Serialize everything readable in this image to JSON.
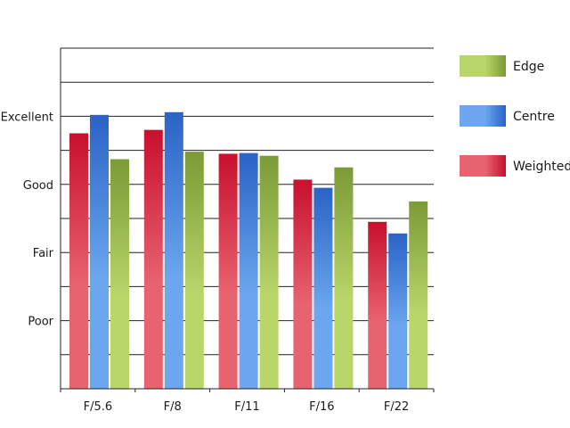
{
  "chart_data": {
    "type": "bar",
    "categories": [
      "F/5.6",
      "F/8",
      "F/11",
      "F/16",
      "F/22"
    ],
    "y_tick_labels": [
      {
        "value": 1,
        "label": "Poor"
      },
      {
        "value": 2,
        "label": "Fair"
      },
      {
        "value": 3,
        "label": "Good"
      },
      {
        "value": 4,
        "label": "Excellent"
      }
    ],
    "ylim": [
      0,
      5
    ],
    "grid": true,
    "legend_position": "right",
    "series": [
      {
        "name": "Weighted",
        "values": [
          3.75,
          3.8,
          3.45,
          3.07,
          2.45
        ],
        "color": "#c8102e",
        "color_light": "#e86370"
      },
      {
        "name": "Centre",
        "values": [
          4.02,
          4.06,
          3.46,
          2.95,
          2.28
        ],
        "color": "#2a63c6",
        "color_light": "#6ba6ee"
      },
      {
        "name": "Edge",
        "values": [
          3.37,
          3.48,
          3.42,
          3.25,
          2.75
        ],
        "color": "#7c9a36",
        "color_light": "#b8d66a"
      }
    ],
    "legend_order": [
      "Edge",
      "Centre",
      "Weighted"
    ]
  }
}
